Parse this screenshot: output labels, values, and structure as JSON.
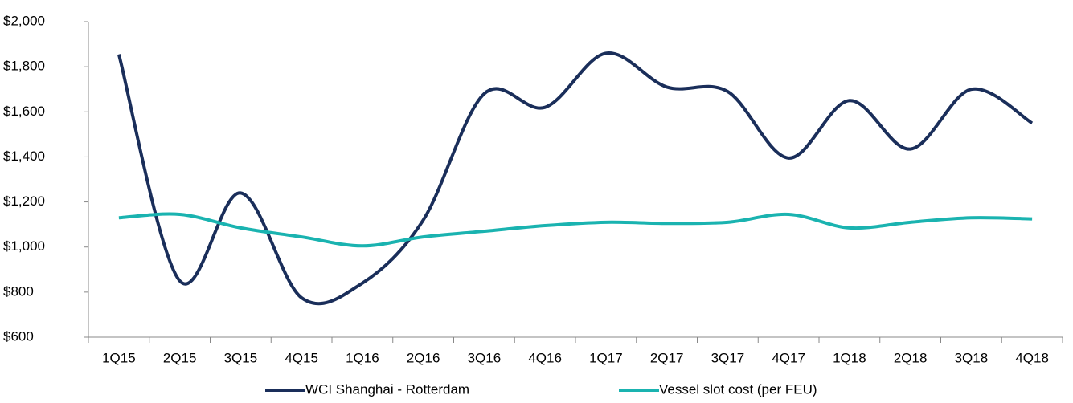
{
  "chart_data": {
    "type": "line",
    "categories": [
      "1Q15",
      "2Q15",
      "3Q15",
      "4Q15",
      "1Q16",
      "2Q16",
      "3Q16",
      "4Q16",
      "1Q17",
      "2Q17",
      "3Q17",
      "4Q17",
      "1Q18",
      "2Q18",
      "3Q18",
      "4Q18"
    ],
    "series": [
      {
        "name": "WCI Shanghai - Rotterdam",
        "color": "#1a2e5a",
        "values": [
          1855,
          850,
          1240,
          775,
          840,
          1120,
          1680,
          1620,
          1860,
          1710,
          1690,
          1395,
          1650,
          1435,
          1700,
          1550
        ]
      },
      {
        "name": "Vessel slot cost (per FEU)",
        "color": "#1ab3b0",
        "values": [
          1130,
          1145,
          1085,
          1045,
          1005,
          1045,
          1070,
          1095,
          1110,
          1105,
          1110,
          1145,
          1085,
          1110,
          1130,
          1125
        ]
      }
    ],
    "ylim": [
      600,
      2000
    ],
    "yticks": [
      {
        "value": 600,
        "label": "$600"
      },
      {
        "value": 800,
        "label": "$800"
      },
      {
        "value": 1000,
        "label": "$1,000"
      },
      {
        "value": 1200,
        "label": "$1,200"
      },
      {
        "value": 1400,
        "label": "$1,400"
      },
      {
        "value": 1600,
        "label": "$1,600"
      },
      {
        "value": 1800,
        "label": "$1,800"
      },
      {
        "value": 2000,
        "label": "$2,000"
      }
    ],
    "grid": false,
    "smooth": true,
    "legend": "bottom"
  }
}
